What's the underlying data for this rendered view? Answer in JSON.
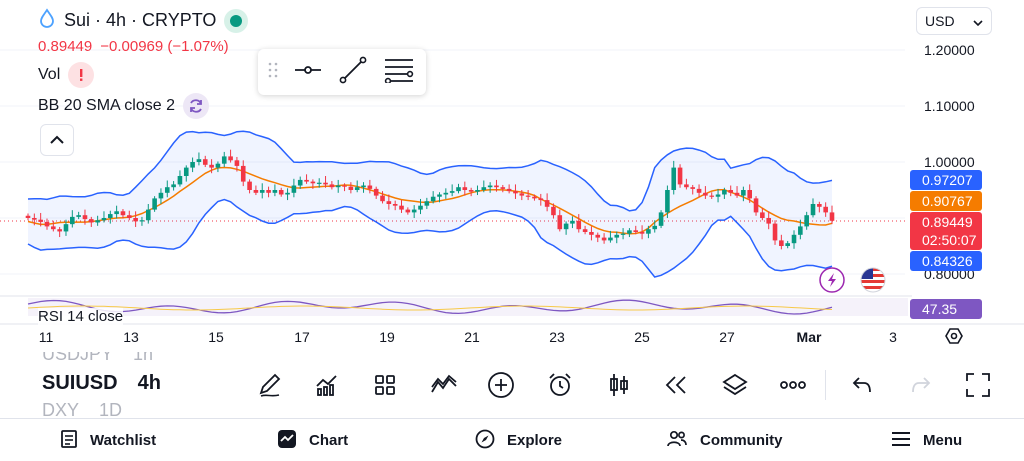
{
  "header": {
    "symbol_title": "Sui · 4h · CRYPTO",
    "last_price": "0.89449",
    "change": "−0.00969 (−1.07%)",
    "vol_label": "Vol",
    "bb_label": "BB 20 SMA close 2",
    "currency": "USD"
  },
  "price_axis": {
    "ticks": [
      "1.20000",
      "1.10000",
      "1.00000",
      "0.80000"
    ],
    "tags": {
      "bb_upper": "0.97207",
      "bb_basis": "0.90767",
      "last": "0.89449",
      "countdown": "02:50:07",
      "bb_lower": "0.84326",
      "rsi": "47.35"
    }
  },
  "time_axis": {
    "labels": [
      "11",
      "13",
      "15",
      "17",
      "19",
      "21",
      "23",
      "25",
      "27",
      "Mar",
      "3"
    ]
  },
  "rsi": {
    "label": "RSI 14 close"
  },
  "colors": {
    "up": "#089981",
    "down": "#f23645",
    "bb_band": "#2962ff",
    "bb_basis": "#f57c00",
    "rsi": "#7e57c2",
    "text": "#131722",
    "tab_icon": "#131722"
  },
  "symbol_switcher": {
    "previous": {
      "symbol": "USDJPY",
      "interval": "1h"
    },
    "current": {
      "symbol": "SUIUSD",
      "interval": "4h"
    },
    "next": {
      "symbol": "DXY",
      "interval": "1D"
    }
  },
  "toolbar_icons": [
    "pen-icon",
    "indicators-icon",
    "layouts-icon",
    "drawings-icon",
    "add-icon",
    "alert-icon",
    "candle-style-icon",
    "replay-icon",
    "layers-icon",
    "more-icon",
    "undo-icon",
    "redo-icon",
    "fullscreen-icon"
  ],
  "tabs": [
    {
      "label": "Watchlist",
      "icon": "watchlist-icon"
    },
    {
      "label": "Chart",
      "icon": "chart-icon"
    },
    {
      "label": "Explore",
      "icon": "compass-icon"
    },
    {
      "label": "Community",
      "icon": "community-icon"
    },
    {
      "label": "Menu",
      "icon": "hamburger-icon"
    }
  ]
}
